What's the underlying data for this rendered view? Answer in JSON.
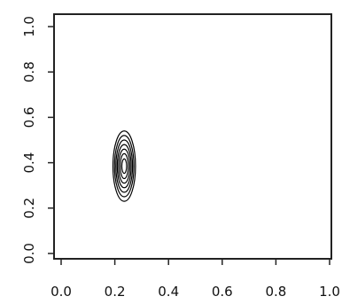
{
  "chart_data": {
    "type": "contour",
    "title": "",
    "xlabel": "",
    "ylabel": "",
    "xlim": [
      0.0,
      1.0
    ],
    "ylim": [
      0.0,
      1.0
    ],
    "grid": false,
    "legend": "none",
    "x_ticks": [
      "0.0",
      "0.2",
      "0.4",
      "0.6",
      "0.8",
      "1.0"
    ],
    "y_ticks": [
      "0.0",
      "0.2",
      "0.4",
      "0.6",
      "0.8",
      "1.0"
    ],
    "contour_center": {
      "x": 0.235,
      "y": 0.385
    },
    "contour_levels": [
      {
        "level": 1,
        "rx": 0.042,
        "ry": 0.155
      },
      {
        "level": 2,
        "rx": 0.036,
        "ry": 0.135
      },
      {
        "level": 3,
        "rx": 0.031,
        "ry": 0.115
      },
      {
        "level": 4,
        "rx": 0.026,
        "ry": 0.095
      },
      {
        "level": 5,
        "rx": 0.021,
        "ry": 0.075
      },
      {
        "level": 6,
        "rx": 0.015,
        "ry": 0.055
      },
      {
        "level": 7,
        "rx": 0.009,
        "ry": 0.032
      }
    ],
    "line_color": "#000000"
  }
}
